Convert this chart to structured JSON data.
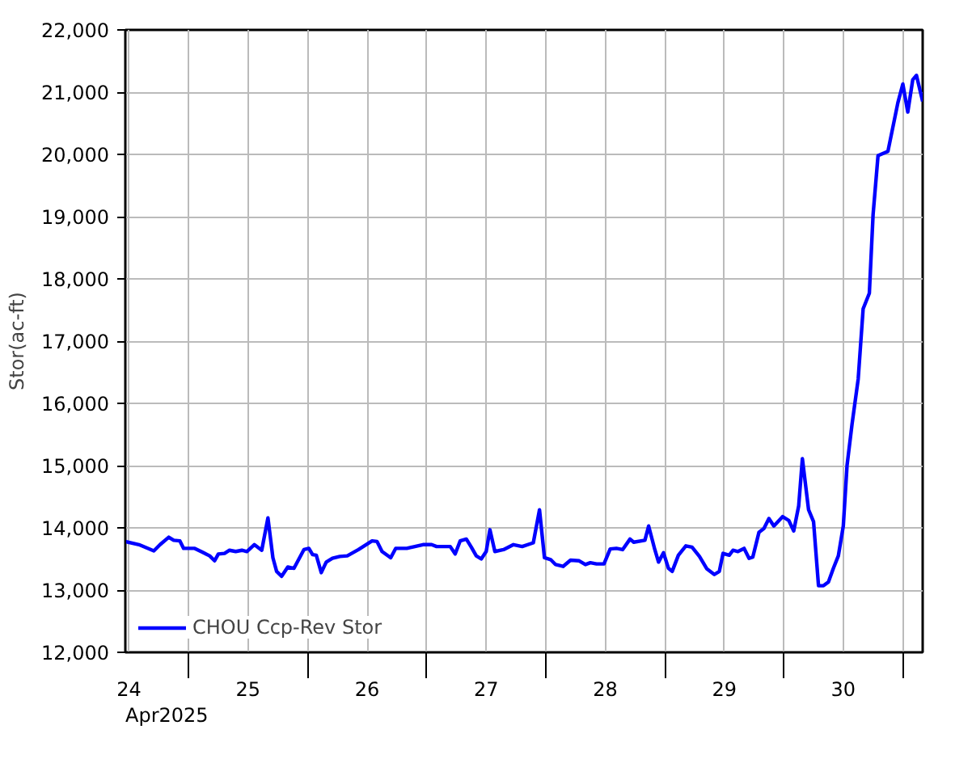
{
  "chart_data": {
    "type": "line",
    "ylabel": "Stor(ac-ft)",
    "annotations": [
      "Apr2025"
    ],
    "xlim": [
      "2025-04-24T11:15",
      "2025-05-01T04:00"
    ],
    "ylim": [
      12000,
      22000
    ],
    "yticks": [
      {
        "value": 12000,
        "label": "12,000"
      },
      {
        "value": 13000,
        "label": "13,000"
      },
      {
        "value": 14000,
        "label": "14,000"
      },
      {
        "value": 15000,
        "label": "15,000"
      },
      {
        "value": 16000,
        "label": "16,000"
      },
      {
        "value": 17000,
        "label": "17,000"
      },
      {
        "value": 18000,
        "label": "18,000"
      },
      {
        "value": 19000,
        "label": "19,000"
      },
      {
        "value": 20000,
        "label": "20,000"
      },
      {
        "value": 21000,
        "label": "21,000"
      },
      {
        "value": 22000,
        "label": "22,000"
      }
    ],
    "xticks": [
      {
        "value": "2025-04-24T12:00",
        "label": "24"
      },
      {
        "value": "2025-04-25T00:00",
        "label": null
      },
      {
        "value": "2025-04-25T12:00",
        "label": "25"
      },
      {
        "value": "2025-04-26T00:00",
        "label": null
      },
      {
        "value": "2025-04-26T12:00",
        "label": "26"
      },
      {
        "value": "2025-04-27T00:00",
        "label": null
      },
      {
        "value": "2025-04-27T12:00",
        "label": "27"
      },
      {
        "value": "2025-04-28T00:00",
        "label": null
      },
      {
        "value": "2025-04-28T12:00",
        "label": "28"
      },
      {
        "value": "2025-04-29T00:00",
        "label": null
      },
      {
        "value": "2025-04-29T12:00",
        "label": "29"
      },
      {
        "value": "2025-04-30T00:00",
        "label": null
      },
      {
        "value": "2025-04-30T12:00",
        "label": "30"
      },
      {
        "value": "2025-05-01T00:00",
        "label": null
      }
    ],
    "grid": true,
    "legend": "bottom",
    "line_style": "solid",
    "marker": "none",
    "x": [
      "2025-04-24T11:15",
      "2025-04-24T14:00",
      "2025-04-24T17:00",
      "2025-04-24T18:15",
      "2025-04-24T20:00",
      "2025-04-24T21:00",
      "2025-04-24T22:15",
      "2025-04-24T23:00",
      "2025-04-25T01:15",
      "2025-04-25T03:00",
      "2025-04-25T04:15",
      "2025-04-25T05:15",
      "2025-04-25T06:00",
      "2025-04-25T07:15",
      "2025-04-25T08:15",
      "2025-04-25T09:30",
      "2025-04-25T10:45",
      "2025-04-25T11:45",
      "2025-04-25T13:15",
      "2025-04-25T14:45",
      "2025-04-25T16:00",
      "2025-04-25T17:00",
      "2025-04-25T17:45",
      "2025-04-25T18:45",
      "2025-04-25T20:00",
      "2025-04-25T21:15",
      "2025-04-25T23:15",
      "2025-04-26T00:15",
      "2025-04-26T01:00",
      "2025-04-26T01:45",
      "2025-04-26T02:45",
      "2025-04-26T03:45",
      "2025-04-26T05:00",
      "2025-04-26T06:30",
      "2025-04-26T08:00",
      "2025-04-26T10:15",
      "2025-04-26T13:00",
      "2025-04-26T14:00",
      "2025-04-26T15:00",
      "2025-04-26T16:45",
      "2025-04-26T17:45",
      "2025-04-26T20:00",
      "2025-04-26T23:15",
      "2025-04-27T01:00",
      "2025-04-27T02:00",
      "2025-04-27T04:45",
      "2025-04-27T05:45",
      "2025-04-27T06:45",
      "2025-04-27T08:00",
      "2025-04-27T09:00",
      "2025-04-27T10:00",
      "2025-04-27T11:00",
      "2025-04-27T12:00",
      "2025-04-27T12:45",
      "2025-04-27T13:45",
      "2025-04-27T15:30",
      "2025-04-27T17:30",
      "2025-04-27T19:15",
      "2025-04-27T21:30",
      "2025-04-27T22:45",
      "2025-04-27T23:45",
      "2025-04-28T01:00",
      "2025-04-28T02:00",
      "2025-04-28T03:30",
      "2025-04-28T05:00",
      "2025-04-28T06:45",
      "2025-04-28T08:00",
      "2025-04-28T09:00",
      "2025-04-28T10:15",
      "2025-04-28T11:45",
      "2025-04-28T13:00",
      "2025-04-28T14:15",
      "2025-04-28T15:30",
      "2025-04-28T17:00",
      "2025-04-28T17:45",
      "2025-04-28T20:00",
      "2025-04-28T20:45",
      "2025-04-28T22:00",
      "2025-04-28T22:45",
      "2025-04-28T23:45",
      "2025-04-29T00:45",
      "2025-04-29T01:30",
      "2025-04-29T02:45",
      "2025-04-29T04:15",
      "2025-04-29T05:30",
      "2025-04-29T07:00",
      "2025-04-29T08:30",
      "2025-04-29T10:00",
      "2025-04-29T11:00",
      "2025-04-29T11:45",
      "2025-04-29T13:00",
      "2025-04-29T13:45",
      "2025-04-29T14:45",
      "2025-04-29T16:00",
      "2025-04-29T17:00",
      "2025-04-29T17:45",
      "2025-04-29T19:00",
      "2025-04-29T20:00",
      "2025-04-29T21:00",
      "2025-04-29T22:00",
      "2025-04-29T23:45",
      "2025-04-30T01:00",
      "2025-04-30T02:00",
      "2025-04-30T03:00",
      "2025-04-30T03:45",
      "2025-04-30T05:00",
      "2025-04-30T06:00",
      "2025-04-30T07:00",
      "2025-04-30T08:00",
      "2025-04-30T09:00",
      "2025-04-30T10:00",
      "2025-04-30T11:00",
      "2025-04-30T12:00",
      "2025-04-30T12:45",
      "2025-04-30T13:45",
      "2025-04-30T15:00",
      "2025-04-30T16:00",
      "2025-04-30T17:15",
      "2025-04-30T18:00",
      "2025-04-30T19:00",
      "2025-04-30T21:00",
      "2025-04-30T23:00",
      "2025-05-01T00:00",
      "2025-05-01T01:00",
      "2025-05-01T02:00",
      "2025-05-01T02:45",
      "2025-05-01T04:00"
    ],
    "series": [
      {
        "name": "CHOU Ccp-Rev Stor",
        "color": "#0000ff",
        "values": [
          13780,
          13730,
          13630,
          13730,
          13850,
          13800,
          13790,
          13670,
          13670,
          13600,
          13550,
          13470,
          13580,
          13590,
          13640,
          13620,
          13640,
          13620,
          13730,
          13640,
          14160,
          13520,
          13300,
          13220,
          13370,
          13350,
          13650,
          13670,
          13570,
          13560,
          13280,
          13450,
          13510,
          13540,
          13550,
          13650,
          13790,
          13780,
          13620,
          13520,
          13670,
          13670,
          13730,
          13730,
          13700,
          13700,
          13580,
          13790,
          13820,
          13690,
          13550,
          13500,
          13620,
          13970,
          13620,
          13650,
          13730,
          13700,
          13760,
          14290,
          13520,
          13490,
          13410,
          13380,
          13480,
          13470,
          13410,
          13440,
          13420,
          13420,
          13660,
          13670,
          13650,
          13820,
          13770,
          13800,
          14030,
          13650,
          13450,
          13600,
          13350,
          13300,
          13560,
          13710,
          13690,
          13540,
          13340,
          13250,
          13300,
          13590,
          13560,
          13640,
          13620,
          13670,
          13510,
          13530,
          13930,
          13990,
          14150,
          14030,
          14180,
          14120,
          13950,
          14350,
          15110,
          14290,
          14100,
          13070,
          13070,
          13130,
          13350,
          13550,
          14030,
          15000,
          15660,
          16390,
          17520,
          17770,
          19030,
          19980,
          20050,
          20830,
          21130,
          20680,
          21200,
          21270,
          20850
        ]
      }
    ]
  }
}
